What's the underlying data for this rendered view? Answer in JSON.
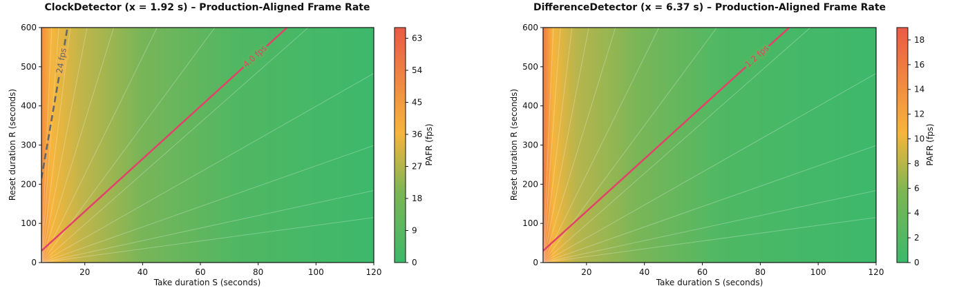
{
  "chart_data": [
    {
      "type": "contour",
      "title": "ClockDetector (x = 1.92 s) – Production-Aligned Frame Rate",
      "xlabel": "Take duration S  (seconds)",
      "ylabel": "Reset duration R (seconds)",
      "xlim": [
        5,
        120
      ],
      "ylim": [
        0,
        600
      ],
      "xticks": [
        "20",
        "40",
        "60",
        "80",
        "100",
        "120"
      ],
      "yticks": [
        "0",
        "100",
        "200",
        "300",
        "400",
        "500",
        "600"
      ],
      "colorbar": {
        "label": "PAFR  (fps)",
        "range": [
          0,
          66
        ],
        "ticks": [
          "0",
          "9",
          "18",
          "27",
          "36",
          "45",
          "54",
          "63"
        ],
        "colors": [
          "#3db86b",
          "#f6b53c",
          "#ea5a46"
        ]
      },
      "contours": [
        {
          "label": "4.0 fps",
          "color": "#e0446a",
          "style": "solid",
          "points": [
            [
              5,
              30
            ],
            [
              90,
              600
            ]
          ]
        },
        {
          "label": "24 fps",
          "color": "#666666",
          "style": "dashed",
          "points": [
            [
              5,
              215
            ],
            [
              14,
              600
            ]
          ]
        }
      ]
    },
    {
      "type": "contour",
      "title": "DifferenceDetector (x = 6.37 s) – Production-Aligned Frame Rate",
      "xlabel": "Take duration S  (seconds)",
      "ylabel": "Reset duration R (seconds)",
      "xlim": [
        5,
        120
      ],
      "ylim": [
        0,
        600
      ],
      "xticks": [
        "20",
        "40",
        "60",
        "80",
        "100",
        "120"
      ],
      "yticks": [
        "0",
        "100",
        "200",
        "300",
        "400",
        "500",
        "600"
      ],
      "colorbar": {
        "label": "PAFR  (fps)",
        "range": [
          0,
          19
        ],
        "ticks": [
          "0",
          "2",
          "4",
          "6",
          "8",
          "10",
          "12",
          "14",
          "16",
          "18"
        ],
        "colors": [
          "#3db86b",
          "#f6b53c",
          "#ea5a46"
        ]
      },
      "contours": [
        {
          "label": "1.2 fps",
          "color": "#e0446a",
          "style": "solid",
          "points": [
            [
              5,
              30
            ],
            [
              90,
              600
            ]
          ]
        }
      ]
    }
  ]
}
